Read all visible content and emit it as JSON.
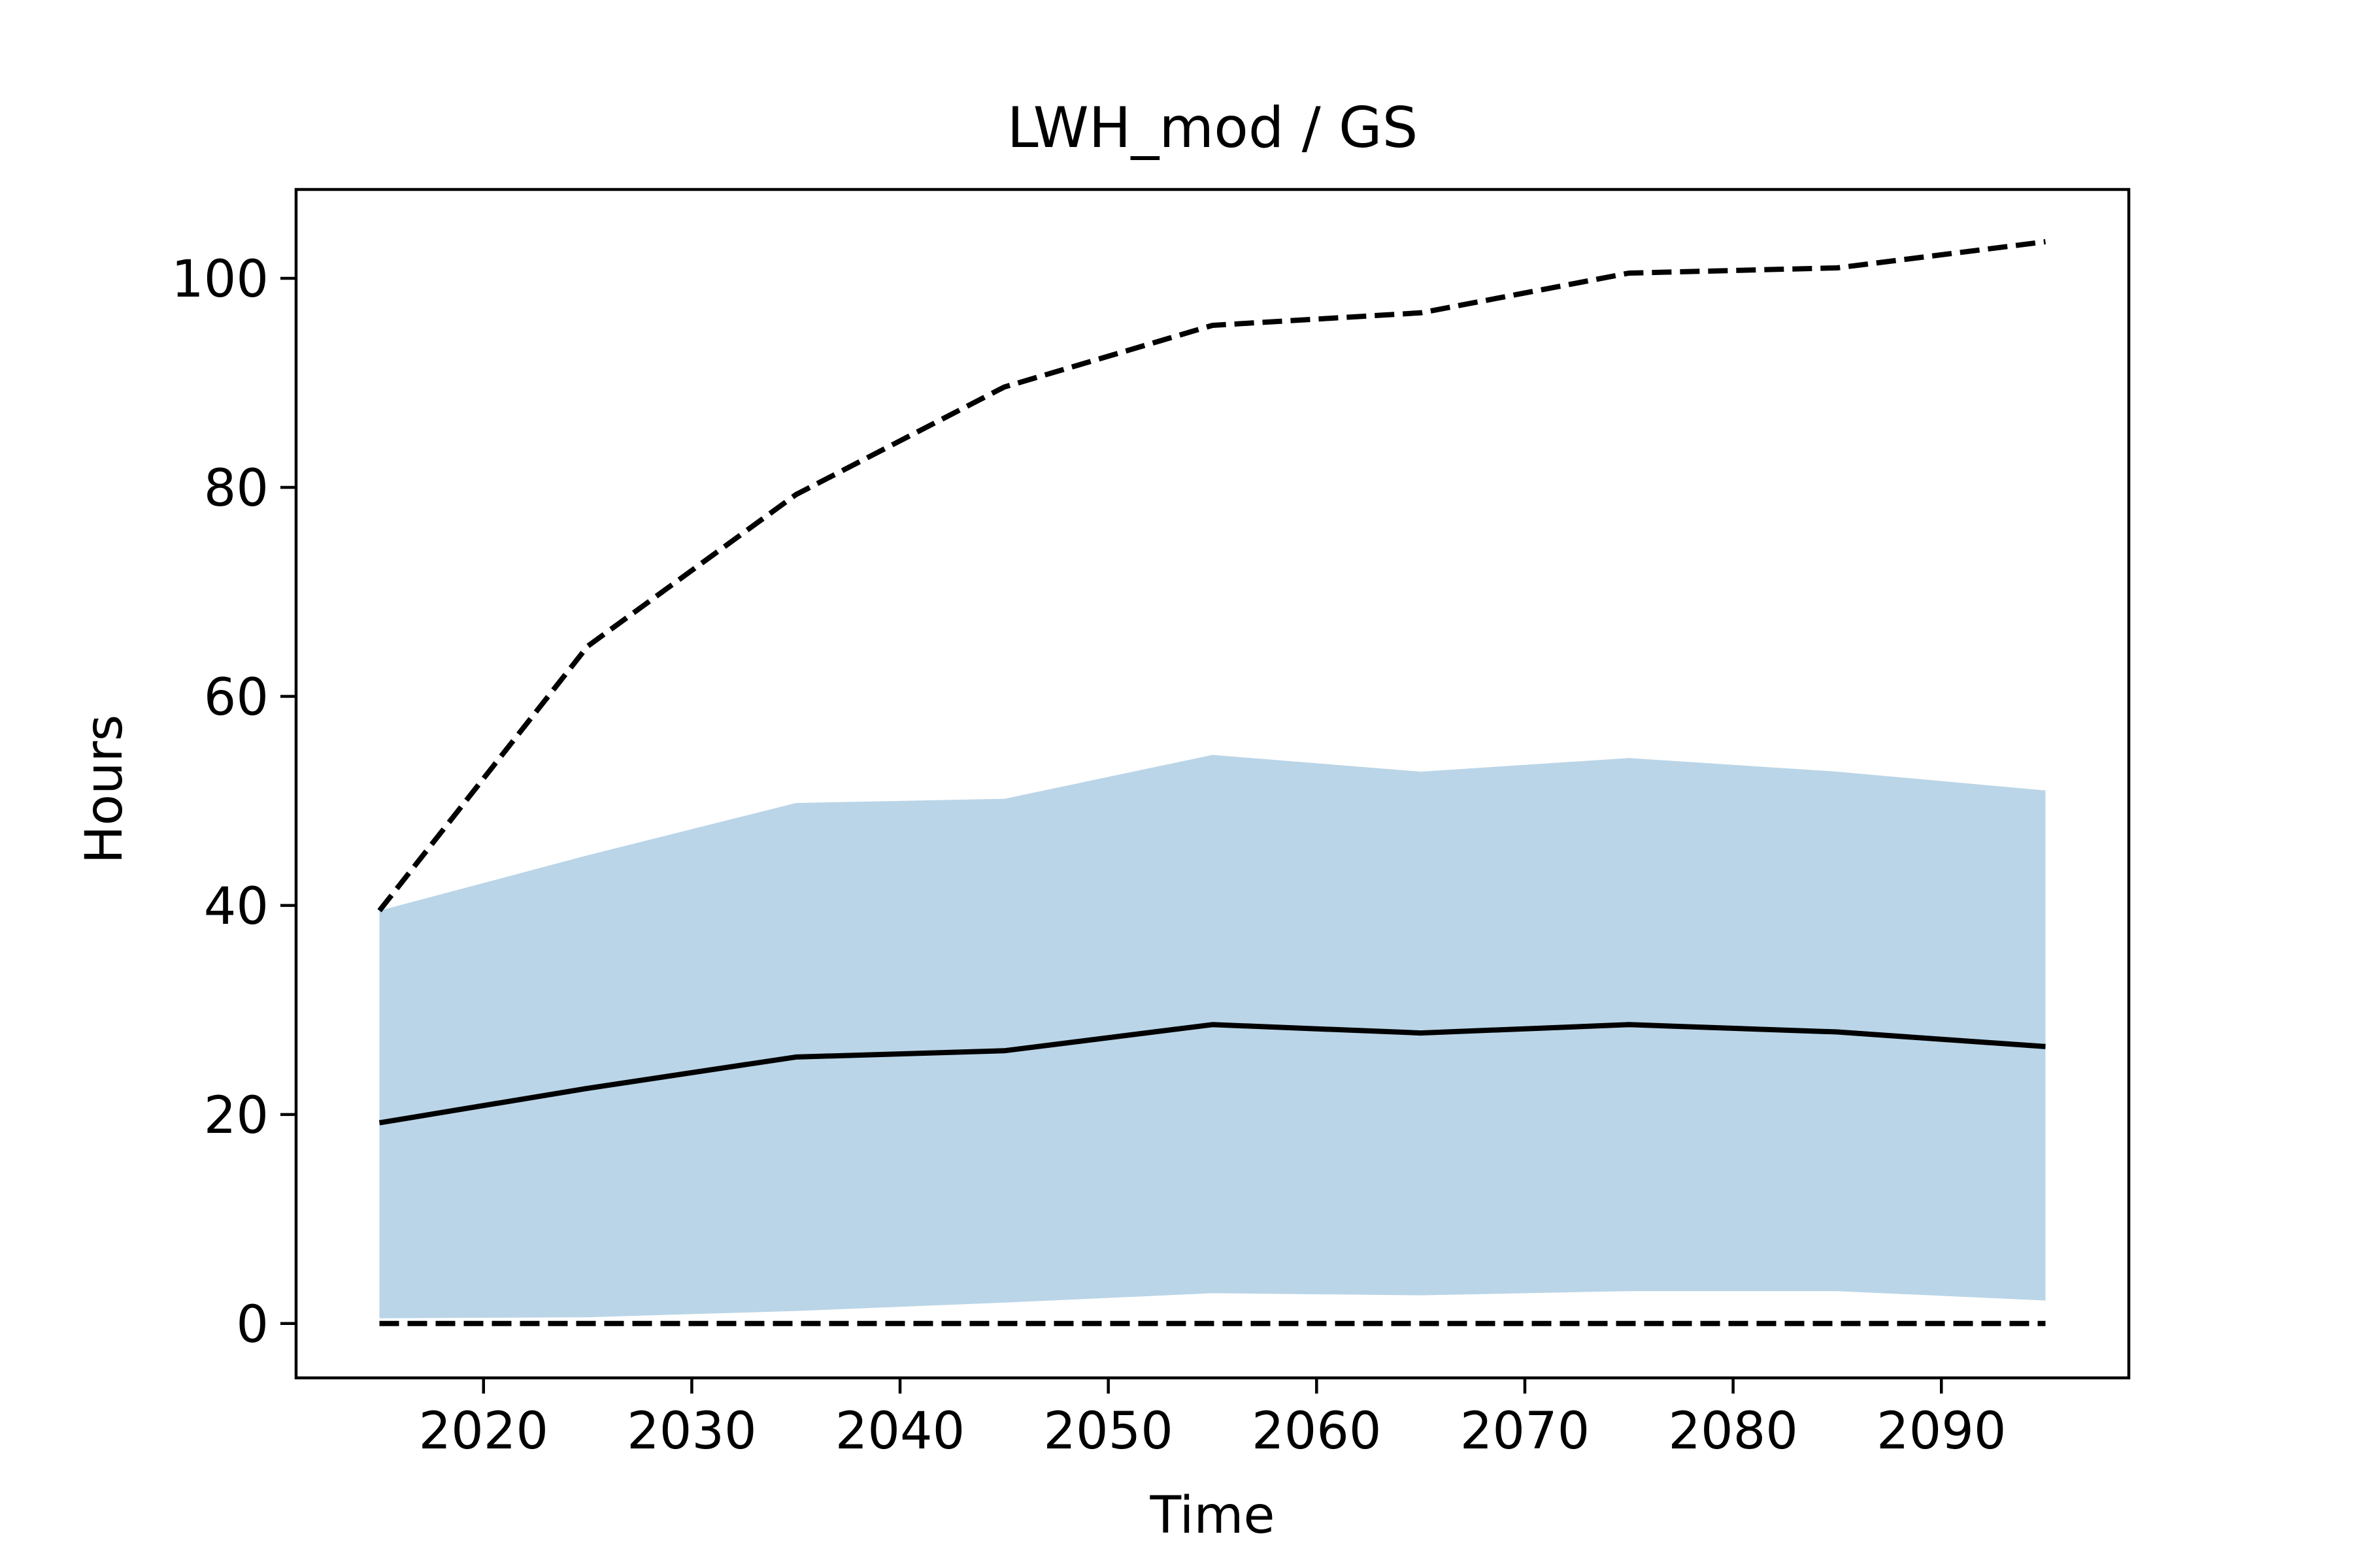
{
  "chart_data": {
    "type": "line",
    "title": "LWH_mod / GS",
    "xlabel": "Time",
    "ylabel": "Hours",
    "xlim": [
      2011,
      2099
    ],
    "ylim": [
      -5.2,
      108.5
    ],
    "xticks": [
      2020,
      2030,
      2040,
      2050,
      2060,
      2070,
      2080,
      2090
    ],
    "yticks": [
      0,
      20,
      40,
      60,
      80,
      100
    ],
    "grid": false,
    "x": [
      2015,
      2025,
      2035,
      2045,
      2055,
      2065,
      2075,
      2085,
      2095
    ],
    "band": {
      "color": "#bad5e7",
      "upper": [
        39.5,
        44.8,
        49.8,
        50.2,
        54.4,
        52.8,
        54.1,
        52.8,
        51.0
      ],
      "lower": [
        0.5,
        0.6,
        1.2,
        2.0,
        2.9,
        2.7,
        3.1,
        3.1,
        2.2
      ]
    },
    "series": [
      {
        "role": "max",
        "style": "dashed",
        "color": "#000000",
        "values": [
          39.5,
          64.8,
          79.3,
          89.6,
          95.5,
          96.7,
          100.5,
          101.0,
          103.5
        ]
      },
      {
        "role": "mean",
        "style": "solid",
        "color": "#000000",
        "values": [
          19.2,
          22.5,
          25.5,
          26.1,
          28.6,
          27.8,
          28.6,
          27.9,
          26.5
        ]
      },
      {
        "role": "min",
        "style": "dashed",
        "color": "#000000",
        "values": [
          0,
          0,
          0,
          0,
          0,
          0,
          0,
          0,
          0
        ]
      }
    ]
  }
}
